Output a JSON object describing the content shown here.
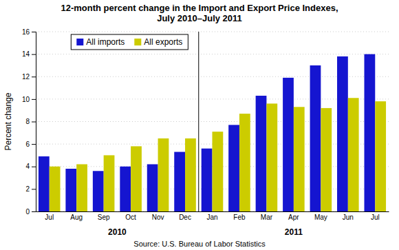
{
  "chart_data": {
    "type": "bar",
    "title": "12-month percent change in the Import and Export Price Indexes,\nJuly 2010–July 2011",
    "categories": [
      "Jul",
      "Aug",
      "Sep",
      "Oct",
      "Nov",
      "Dec",
      "Jan",
      "Feb",
      "Mar",
      "Apr",
      "May",
      "Jun",
      "Jul"
    ],
    "series": [
      {
        "name": "All imports",
        "color": "#1515d0",
        "values": [
          4.9,
          3.8,
          3.6,
          4.0,
          4.2,
          5.3,
          5.6,
          7.7,
          10.3,
          11.9,
          13.0,
          13.8,
          14.0
        ]
      },
      {
        "name": "All exports",
        "color": "#cccc00",
        "values": [
          4.0,
          4.2,
          5.0,
          5.8,
          6.5,
          6.5,
          7.1,
          8.7,
          9.6,
          9.3,
          9.2,
          10.1,
          9.8
        ]
      }
    ],
    "ylabel": "Percent change",
    "ylim": [
      0,
      16
    ],
    "yticks": [
      0,
      2,
      4,
      6,
      8,
      10,
      12,
      14,
      16
    ],
    "grid": true,
    "legend": "upper left",
    "annotations": [
      {
        "text": "2010",
        "first": 0,
        "last": 5
      },
      {
        "text": "2011",
        "first": 6,
        "last": 12
      }
    ],
    "source": "Source: U.S. Bureau of Labor Statistics"
  }
}
